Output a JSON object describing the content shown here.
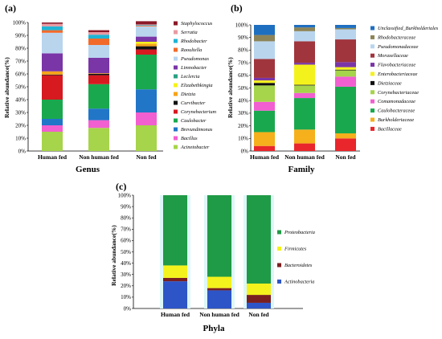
{
  "panels": [
    {
      "id": "a",
      "letter": "(a)",
      "chart_data": {
        "type": "bar",
        "stacked": true,
        "categories": [
          "Human fed",
          "Non human fed",
          "Non fed"
        ],
        "ylabel": "Relative abundance(%)",
        "xlabel": "Genus",
        "ylim": [
          0,
          100
        ],
        "yticks": [
          "0%",
          "10%",
          "20%",
          "30%",
          "40%",
          "50%",
          "60%",
          "70%",
          "80%",
          "90%",
          "100%"
        ],
        "legend_position": "right",
        "series": [
          {
            "name": "Acinetobacter",
            "color": "#a6d44a",
            "values": [
              15,
              18,
              20
            ]
          },
          {
            "name": "Bacillus",
            "color": "#f25fd0",
            "values": [
              5,
              6,
              10
            ]
          },
          {
            "name": "Brevundimonas",
            "color": "#2176c8",
            "values": [
              5,
              9,
              18
            ]
          },
          {
            "name": "Caulobacter",
            "color": "#1aa84e",
            "values": [
              15,
              19,
              27
            ]
          },
          {
            "name": "Corynebacterium",
            "color": "#d71920",
            "values": [
              19,
              7,
              4
            ]
          },
          {
            "name": "Curvibacter",
            "color": "#111111",
            "values": [
              0.5,
              1,
              2.5
            ]
          },
          {
            "name": "Dietzia",
            "color": "#f5a31a",
            "values": [
              2.5,
              0.5,
              2
            ]
          },
          {
            "name": "Elizabethkingia",
            "color": "#f4f21c",
            "values": [
              0,
              0,
              1.5
            ]
          },
          {
            "name": "Leclercia",
            "color": "#2a9f83",
            "values": [
              0,
              0,
              0
            ]
          },
          {
            "name": "Limnobacter",
            "color": "#7a35a7",
            "values": [
              14,
              12,
              4
            ]
          },
          {
            "name": "Pseudomonas",
            "color": "#b9d5ee",
            "values": [
              16,
              10,
              8
            ]
          },
          {
            "name": "Raoultella",
            "color": "#f26a2a",
            "values": [
              2,
              5,
              0.5
            ]
          },
          {
            "name": "Rhodobacter",
            "color": "#1fb4d5",
            "values": [
              3,
              3,
              0.5
            ]
          },
          {
            "name": "Serratia",
            "color": "#e79aa2",
            "values": [
              2,
              2,
              0.5
            ]
          },
          {
            "name": "Staphylococcus",
            "color": "#8a1a28",
            "values": [
              1,
              1.5,
              2.5
            ]
          }
        ]
      }
    },
    {
      "id": "b",
      "letter": "(b)",
      "chart_data": {
        "type": "bar",
        "stacked": true,
        "categories": [
          "Human fed",
          "Non human fed",
          "Non fed"
        ],
        "ylabel": "Relative abundance(%)",
        "xlabel": "Family",
        "ylim": [
          0,
          100
        ],
        "yticks": [
          "0%",
          "10%",
          "20%",
          "30%",
          "40%",
          "50%",
          "60%",
          "70%",
          "80%",
          "90%",
          "100%"
        ],
        "legend_position": "right",
        "series": [
          {
            "name": "Bacillaceae",
            "color": "#e8262b",
            "values": [
              4,
              6,
              10
            ]
          },
          {
            "name": "Burkholderiaceae",
            "color": "#f5b01c",
            "values": [
              11,
              11,
              4
            ]
          },
          {
            "name": "Caulobacteraceae",
            "color": "#1aa84e",
            "values": [
              17,
              25,
              37
            ]
          },
          {
            "name": "Comamonadaceae",
            "color": "#f25fd0",
            "values": [
              7,
              4,
              8
            ]
          },
          {
            "name": "Corynebacteriaceae",
            "color": "#a6d44a",
            "values": [
              13,
              6,
              5
            ]
          },
          {
            "name": "Dietziaceae",
            "color": "#111111",
            "values": [
              2,
              0.5,
              0.5
            ]
          },
          {
            "name": "Enterobacteriaceae",
            "color": "#f4f21c",
            "values": [
              2,
              16,
              2
            ]
          },
          {
            "name": "Flavobacteriaceae",
            "color": "#7a35a7",
            "values": [
              2,
              1.5,
              4
            ]
          },
          {
            "name": "Moraxellaceae",
            "color": "#a0353d",
            "values": [
              15,
              17,
              18
            ]
          },
          {
            "name": "Pseudomonadaceae",
            "color": "#b9d5ee",
            "values": [
              14,
              8,
              8
            ]
          },
          {
            "name": "Rhodobacteraceae",
            "color": "#8c8458",
            "values": [
              5,
              3,
              1
            ]
          },
          {
            "name": "Unclassified_Burkholderiales",
            "color": "#1f6fc0",
            "values": [
              8,
              2,
              2.5
            ]
          }
        ]
      }
    },
    {
      "id": "c",
      "letter": "(c)",
      "chart_data": {
        "type": "bar",
        "stacked": true,
        "categories": [
          "Human fed",
          "Non human fed",
          "Non fed"
        ],
        "ylabel": "Relative abundance(%)",
        "xlabel": "Phyla",
        "ylim": [
          0,
          100
        ],
        "yticks": [
          "0%",
          "10%",
          "20%",
          "30%",
          "40%",
          "50%",
          "60%",
          "70%",
          "80%",
          "90%",
          "100%"
        ],
        "legend_position": "right",
        "series": [
          {
            "name": "Actinobacteria",
            "color": "#2d55c8",
            "values": [
              24,
              16,
              5
            ]
          },
          {
            "name": "Bacteroidetes",
            "color": "#7a1f1f",
            "values": [
              3,
              2,
              7
            ]
          },
          {
            "name": "Firmicutes",
            "color": "#f4f21c",
            "values": [
              11,
              10,
              10
            ]
          },
          {
            "name": "Proteobacteria",
            "color": "#1f9a46",
            "values": [
              62,
              72,
              78
            ]
          }
        ]
      }
    }
  ],
  "legend_a_order": [
    "Staphylococcus",
    "Serratia",
    "Rhodobacter",
    "Raoultella",
    "Pseudomonas",
    "Limnobacter",
    "Leclercia",
    "Elizabethkingia",
    "Dietzia",
    "Curvibacter",
    "Corynebacterium",
    "Caulobacter",
    "Brevundimonas",
    "Bacillus",
    "Acinetobacter"
  ],
  "legend_b_order": [
    "Unclassified_Burkholderiales",
    "Rhodobacteraceae",
    "Pseudomonadaceae",
    "Moraxellaceae",
    "Flavobacteriaceae",
    "Enterobacteriaceae",
    "Dietziaceae",
    "Corynebacteriaceae",
    "Comamonadaceae",
    "Caulobacteraceae",
    "Burkholderiaceae",
    "Bacillaceae"
  ],
  "legend_c_order": [
    "Proteobacteria",
    "Firmicutes",
    "Bacteroidetes",
    "Actinobacteria"
  ]
}
